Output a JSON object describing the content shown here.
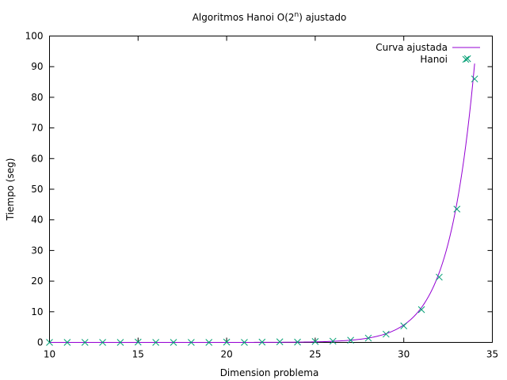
{
  "chart_data": {
    "type": "scatter",
    "title_main": "Algoritmos Hanoi O(2",
    "title_sup": "n",
    "title_tail": ") ajustado",
    "xlabel": "Dimension problema",
    "ylabel": "Tiempo (seg)",
    "xlim": [
      10,
      35
    ],
    "ylim": [
      0,
      100
    ],
    "xticks": [
      10,
      15,
      20,
      25,
      30,
      35
    ],
    "yticks": [
      0,
      10,
      20,
      30,
      40,
      50,
      60,
      70,
      80,
      90,
      100
    ],
    "legend_position": "top-right",
    "grid": false,
    "series": [
      {
        "name": "Curva ajustada",
        "kind": "line",
        "color": "#9400d3",
        "model": "exponential base 2",
        "x_range": [
          10,
          34
        ],
        "reference_point": [
          34,
          91
        ]
      },
      {
        "name": "Hanoi",
        "kind": "points",
        "marker": "x",
        "color": "#009e73",
        "x": [
          10,
          11,
          12,
          13,
          14,
          15,
          16,
          17,
          18,
          19,
          20,
          21,
          22,
          23,
          24,
          25,
          26,
          27,
          28,
          29,
          30,
          31,
          32,
          33,
          33.6,
          34
        ],
        "y": [
          0,
          0,
          0,
          0,
          0,
          0.1,
          0,
          0,
          0,
          0,
          0.1,
          0,
          0.1,
          0.2,
          0.1,
          0.3,
          0.4,
          0.7,
          1.4,
          2.7,
          5.4,
          10.7,
          21.3,
          43.5,
          92.6,
          86
        ]
      }
    ]
  }
}
